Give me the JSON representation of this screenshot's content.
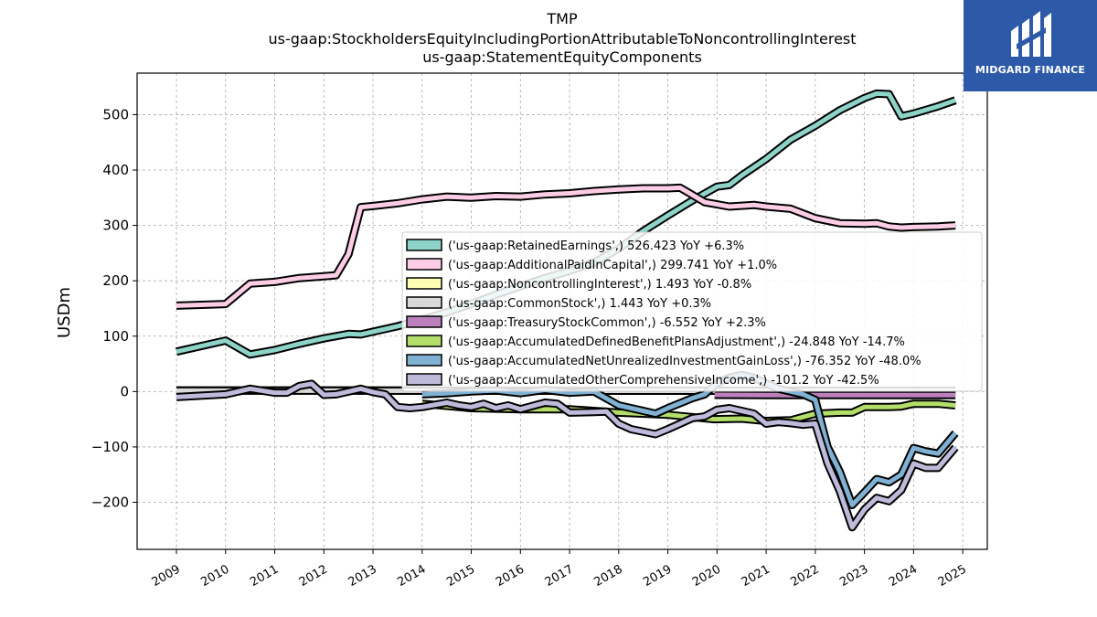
{
  "brand": {
    "name": "MIDGARD FINANCE",
    "color": "#2d5aa8"
  },
  "chart_data": {
    "type": "line",
    "title": [
      "TMP",
      "us-gaap:StockholdersEquityIncludingPortionAttributableToNoncontrollingInterest",
      "us-gaap:StatementEquityComponents"
    ],
    "xlabel": "",
    "ylabel": "USDm",
    "xlim": [
      2008.2,
      2025.5
    ],
    "ylim": [
      -285,
      575
    ],
    "x_ticks": [
      "2009",
      "2010",
      "2011",
      "2012",
      "2013",
      "2014",
      "2015",
      "2016",
      "2017",
      "2018",
      "2019",
      "2020",
      "2021",
      "2022",
      "2023",
      "2024",
      "2025"
    ],
    "y_ticks": [
      -200,
      -100,
      0,
      100,
      200,
      300,
      400,
      500
    ],
    "y_tick_labels": [
      "−200",
      "−100",
      "0",
      "100",
      "200",
      "300",
      "400",
      "500"
    ],
    "grid": true,
    "legend_position": "right",
    "series": [
      {
        "name": "('us-gaap:RetainedEarnings',) 526.423 YoY +6.3%",
        "color": "#8dd3c7",
        "points": [
          [
            2009.0,
            72
          ],
          [
            2010.0,
            92
          ],
          [
            2010.5,
            67
          ],
          [
            2011.0,
            75
          ],
          [
            2011.5,
            86
          ],
          [
            2012.0,
            96
          ],
          [
            2012.5,
            104
          ],
          [
            2012.75,
            103
          ],
          [
            2013.0,
            108
          ],
          [
            2013.5,
            118
          ],
          [
            2014.0,
            130
          ],
          [
            2014.5,
            143
          ],
          [
            2015.0,
            158
          ],
          [
            2015.5,
            175
          ],
          [
            2016.0,
            190
          ],
          [
            2016.5,
            205
          ],
          [
            2017.0,
            218
          ],
          [
            2017.5,
            233
          ],
          [
            2018.0,
            258
          ],
          [
            2018.5,
            290
          ],
          [
            2019.0,
            318
          ],
          [
            2019.5,
            345
          ],
          [
            2020.0,
            370
          ],
          [
            2020.25,
            373
          ],
          [
            2020.5,
            390
          ],
          [
            2021.0,
            420
          ],
          [
            2021.5,
            455
          ],
          [
            2022.0,
            480
          ],
          [
            2022.5,
            508
          ],
          [
            2023.0,
            530
          ],
          [
            2023.25,
            538
          ],
          [
            2023.5,
            537
          ],
          [
            2023.75,
            497
          ],
          [
            2024.0,
            502
          ],
          [
            2024.5,
            515
          ],
          [
            2024.85,
            526
          ]
        ]
      },
      {
        "name": "('us-gaap:AdditionalPaidInCapital',) 299.741 YoY +1.0%",
        "color": "#fccde5",
        "points": [
          [
            2009.0,
            155
          ],
          [
            2010.0,
            158
          ],
          [
            2010.5,
            195
          ],
          [
            2011.0,
            198
          ],
          [
            2011.5,
            205
          ],
          [
            2012.0,
            208
          ],
          [
            2012.25,
            210
          ],
          [
            2012.5,
            248
          ],
          [
            2012.75,
            333
          ],
          [
            2013.0,
            335
          ],
          [
            2013.5,
            340
          ],
          [
            2014.0,
            347
          ],
          [
            2014.5,
            352
          ],
          [
            2015.0,
            350
          ],
          [
            2015.5,
            353
          ],
          [
            2016.0,
            352
          ],
          [
            2016.5,
            356
          ],
          [
            2017.0,
            358
          ],
          [
            2017.5,
            362
          ],
          [
            2018.0,
            365
          ],
          [
            2018.5,
            367
          ],
          [
            2019.0,
            367
          ],
          [
            2019.25,
            368
          ],
          [
            2019.5,
            355
          ],
          [
            2019.75,
            342
          ],
          [
            2020.0,
            338
          ],
          [
            2020.25,
            334
          ],
          [
            2020.75,
            337
          ],
          [
            2021.0,
            334
          ],
          [
            2021.5,
            330
          ],
          [
            2022.0,
            313
          ],
          [
            2022.5,
            304
          ],
          [
            2023.0,
            303
          ],
          [
            2023.25,
            304
          ],
          [
            2023.5,
            298
          ],
          [
            2023.75,
            296
          ],
          [
            2024.0,
            297
          ],
          [
            2024.5,
            298
          ],
          [
            2024.85,
            300
          ]
        ]
      },
      {
        "name": "('us-gaap:NoncontrollingInterest',) 1.493 YoY -0.8%",
        "color": "#ffffb3",
        "points": [
          [
            2009.0,
            2
          ],
          [
            2012.0,
            2
          ],
          [
            2015.0,
            1.5
          ],
          [
            2018.0,
            1.5
          ],
          [
            2021.0,
            1.5
          ],
          [
            2024.85,
            1.5
          ]
        ]
      },
      {
        "name": "('us-gaap:CommonStock',) 1.443 YoY +0.3%",
        "color": "#d9d9d9",
        "points": [
          [
            2009.0,
            1.5
          ],
          [
            2012.0,
            1.5
          ],
          [
            2015.0,
            1.4
          ],
          [
            2018.0,
            1.4
          ],
          [
            2021.0,
            1.4
          ],
          [
            2024.85,
            1.4
          ]
        ]
      },
      {
        "name": "('us-gaap:TreasuryStockCommon',) -6.552 YoY +2.3%",
        "color": "#bc80bd",
        "points": [
          [
            2019.95,
            -6
          ],
          [
            2021.0,
            -6.3
          ],
          [
            2022.0,
            -6.4
          ],
          [
            2023.0,
            -6.4
          ],
          [
            2024.0,
            -6.5
          ],
          [
            2024.85,
            -6.55
          ]
        ]
      },
      {
        "name": "('us-gaap:AccumulatedDefinedBenefitPlansAdjustment',) -24.848 YoY -14.7%",
        "color": "#b3de69",
        "points": [
          [
            2014.0,
            -22
          ],
          [
            2015.0,
            -30
          ],
          [
            2016.0,
            -32
          ],
          [
            2017.0,
            -32
          ],
          [
            2018.0,
            -38
          ],
          [
            2019.0,
            -42
          ],
          [
            2019.95,
            -50
          ],
          [
            2020.5,
            -49
          ],
          [
            2021.0,
            -53
          ],
          [
            2021.5,
            -52
          ],
          [
            2022.0,
            -40
          ],
          [
            2022.5,
            -38
          ],
          [
            2022.75,
            -38
          ],
          [
            2023.0,
            -28
          ],
          [
            2023.5,
            -28
          ],
          [
            2023.75,
            -27
          ],
          [
            2024.0,
            -22
          ],
          [
            2024.5,
            -22
          ],
          [
            2024.85,
            -25
          ]
        ]
      },
      {
        "name": "('us-gaap:AccumulatedNetUnrealizedInvestmentGainLoss',) -76.352 YoY -48.0%",
        "color": "#80b1d3",
        "points": [
          [
            2014.0,
            -5
          ],
          [
            2014.5,
            -3
          ],
          [
            2015.0,
            0
          ],
          [
            2015.5,
            2
          ],
          [
            2016.0,
            -3
          ],
          [
            2016.5,
            3
          ],
          [
            2017.0,
            -2
          ],
          [
            2017.5,
            0
          ],
          [
            2018.0,
            -25
          ],
          [
            2018.5,
            -35
          ],
          [
            2018.75,
            -40
          ],
          [
            2019.0,
            -30
          ],
          [
            2019.5,
            -12
          ],
          [
            2019.75,
            -5
          ],
          [
            2020.0,
            15
          ],
          [
            2020.25,
            25
          ],
          [
            2020.5,
            30
          ],
          [
            2020.75,
            25
          ],
          [
            2021.0,
            15
          ],
          [
            2021.25,
            5
          ],
          [
            2021.5,
            0
          ],
          [
            2021.75,
            -5
          ],
          [
            2022.0,
            -15
          ],
          [
            2022.25,
            -100
          ],
          [
            2022.5,
            -145
          ],
          [
            2022.75,
            -205
          ],
          [
            2023.0,
            -182
          ],
          [
            2023.25,
            -158
          ],
          [
            2023.5,
            -164
          ],
          [
            2023.75,
            -150
          ],
          [
            2024.0,
            -102
          ],
          [
            2024.25,
            -108
          ],
          [
            2024.5,
            -112
          ],
          [
            2024.85,
            -75
          ]
        ]
      },
      {
        "name": "('us-gaap:AccumulatedOtherComprehensiveIncome',) -101.2 YoY -42.5%",
        "color": "#bebada",
        "points": [
          [
            2009.0,
            -10
          ],
          [
            2010.0,
            -5
          ],
          [
            2010.5,
            5
          ],
          [
            2011.0,
            -2
          ],
          [
            2011.25,
            -2
          ],
          [
            2011.5,
            10
          ],
          [
            2011.75,
            14
          ],
          [
            2012.0,
            -6
          ],
          [
            2012.25,
            -5
          ],
          [
            2012.75,
            5
          ],
          [
            2013.0,
            -1
          ],
          [
            2013.25,
            -5
          ],
          [
            2013.5,
            -28
          ],
          [
            2013.75,
            -30
          ],
          [
            2014.0,
            -28
          ],
          [
            2014.5,
            -20
          ],
          [
            2014.75,
            -25
          ],
          [
            2015.0,
            -28
          ],
          [
            2015.25,
            -22
          ],
          [
            2015.5,
            -30
          ],
          [
            2015.75,
            -25
          ],
          [
            2016.0,
            -32
          ],
          [
            2016.25,
            -26
          ],
          [
            2016.5,
            -20
          ],
          [
            2016.75,
            -22
          ],
          [
            2017.0,
            -38
          ],
          [
            2017.5,
            -37
          ],
          [
            2017.75,
            -36
          ],
          [
            2018.0,
            -58
          ],
          [
            2018.25,
            -68
          ],
          [
            2018.75,
            -77
          ],
          [
            2019.0,
            -68
          ],
          [
            2019.5,
            -48
          ],
          [
            2019.75,
            -45
          ],
          [
            2020.0,
            -33
          ],
          [
            2020.25,
            -30
          ],
          [
            2020.5,
            -35
          ],
          [
            2020.75,
            -40
          ],
          [
            2021.0,
            -58
          ],
          [
            2021.25,
            -55
          ],
          [
            2021.5,
            -57
          ],
          [
            2021.75,
            -60
          ],
          [
            2022.0,
            -58
          ],
          [
            2022.25,
            -130
          ],
          [
            2022.5,
            -180
          ],
          [
            2022.75,
            -245
          ],
          [
            2023.0,
            -213
          ],
          [
            2023.25,
            -192
          ],
          [
            2023.5,
            -198
          ],
          [
            2023.75,
            -178
          ],
          [
            2024.0,
            -130
          ],
          [
            2024.25,
            -138
          ],
          [
            2024.5,
            -138
          ],
          [
            2024.85,
            -101
          ]
        ]
      }
    ]
  }
}
